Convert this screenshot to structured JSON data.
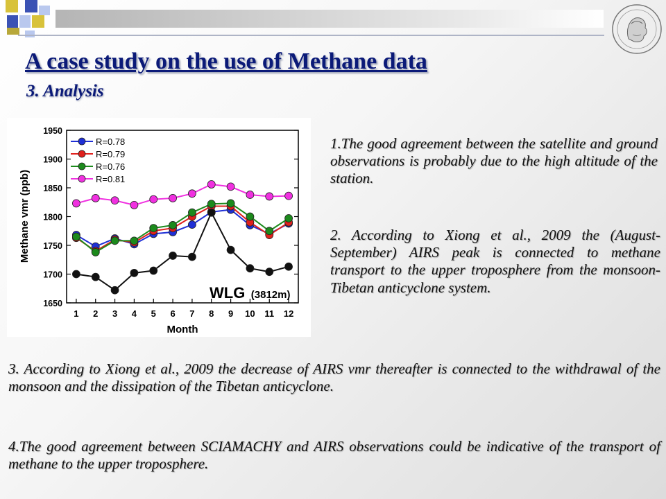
{
  "title": "A case study on the use of Methane data",
  "subtitle": "3. Analysis",
  "paragraphs": {
    "p1": "1.The good agreement between the satellite and ground observations is probably due to the high altitude of the station.",
    "p2": "2. According to Xiong et al., 2009 the (August-September) AIRS peak is connected to methane transport to the upper troposphere from the monsoon-Tibetan anticyclone system.",
    "p3": "3. According to Xiong et al., 2009 the decrease of AIRS vmr thereafter is connected to the withdrawal of the monsoon and the dissipation of the Tibetan anticyclone.",
    "p4": "4.The good agreement between SCIAMACHY and AIRS observations could be indicative of the transport of methane to the upper troposphere."
  },
  "colors": {
    "title": "#0b1a78",
    "blue": "#1f2fd6",
    "red": "#e0201c",
    "green": "#1c8a1c",
    "magenta": "#f030e0",
    "black": "#111111"
  },
  "chart_data": {
    "type": "line",
    "xlabel": "Month",
    "ylabel": "Methane vmr (ppb)",
    "annotation": "WLG",
    "annotation_sub": "(3812m)",
    "x": [
      1,
      2,
      3,
      4,
      5,
      6,
      7,
      8,
      9,
      10,
      11,
      12
    ],
    "ylim": [
      1650,
      1950
    ],
    "yticks": [
      1650,
      1700,
      1750,
      1800,
      1850,
      1900,
      1950
    ],
    "legend_position": "top-left",
    "series": [
      {
        "name": "R=0.78",
        "color": "#1f2fd6",
        "values": [
          1768,
          1748,
          1762,
          1752,
          1770,
          1773,
          1786,
          1808,
          1812,
          1785,
          1770,
          1788
        ]
      },
      {
        "name": "R=0.79",
        "color": "#e0201c",
        "values": [
          1763,
          1740,
          1760,
          1755,
          1775,
          1780,
          1800,
          1818,
          1818,
          1790,
          1768,
          1790
        ]
      },
      {
        "name": "R=0.76",
        "color": "#1c8a1c",
        "values": [
          1765,
          1738,
          1758,
          1758,
          1780,
          1785,
          1807,
          1822,
          1823,
          1800,
          1775,
          1797
        ]
      },
      {
        "name": "R=0.81",
        "color": "#f030e0",
        "values": [
          1823,
          1832,
          1828,
          1820,
          1830,
          1832,
          1840,
          1856,
          1852,
          1838,
          1835,
          1836
        ]
      },
      {
        "name": "",
        "color": "#111111",
        "values": [
          1700,
          1695,
          1672,
          1702,
          1706,
          1732,
          1730,
          1807,
          1742,
          1710,
          1704,
          1713
        ]
      }
    ]
  }
}
